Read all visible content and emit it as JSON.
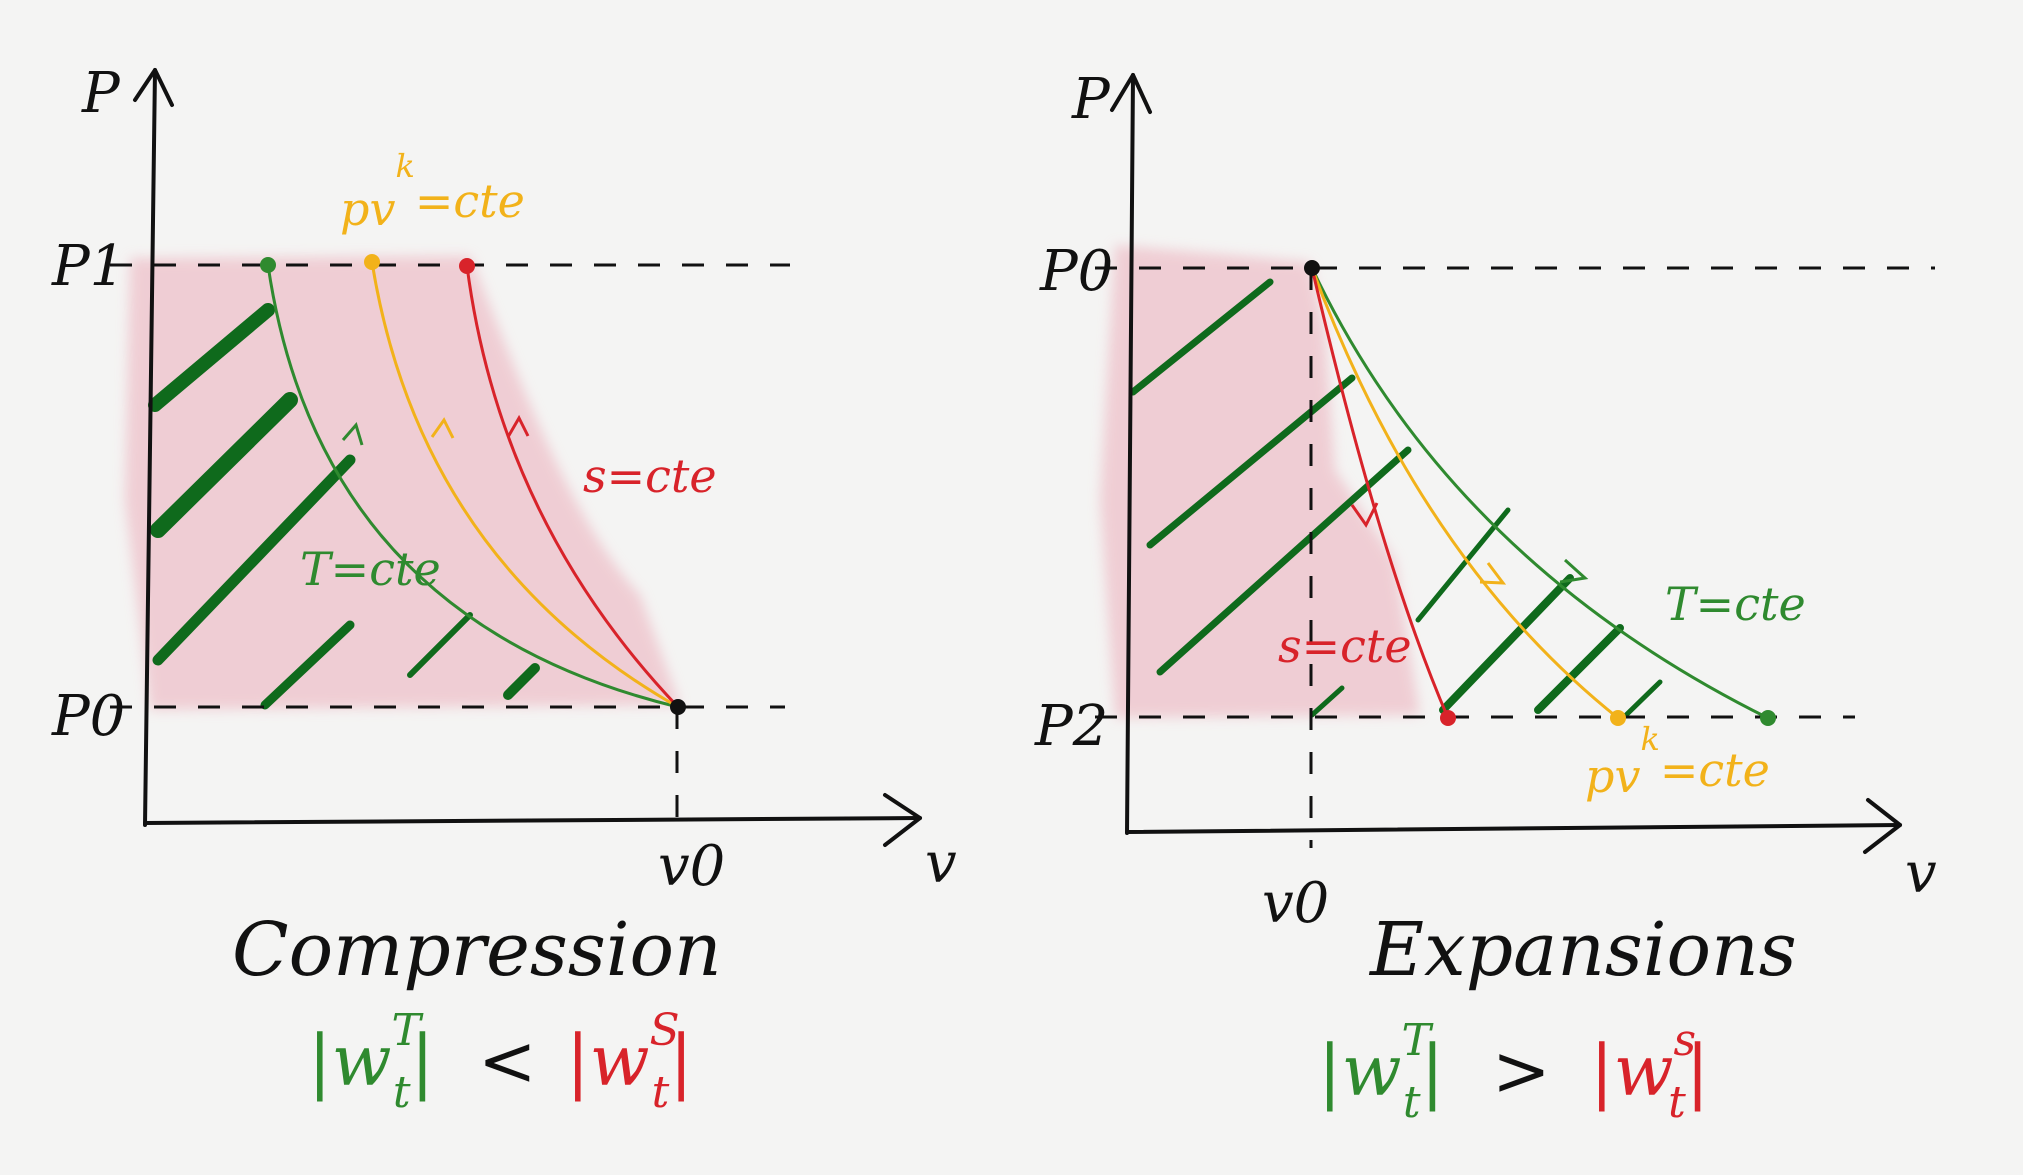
{
  "colors": {
    "green": "#2f8a2f",
    "dark_green": "#0f6a1c",
    "yellow": "#f2b21a",
    "red": "#d8232a",
    "pink": "#efc7cf",
    "ink": "#111111"
  },
  "compression": {
    "axis_p": "P",
    "axis_v": "v",
    "p_top": "P1",
    "p_bottom": "P0",
    "v_point": "v0",
    "label_polytropic": "pv^k=cte",
    "label_polytropic_base": "pv",
    "label_polytropic_exp": "k",
    "label_polytropic_rest": "=cte",
    "label_isentropic": "s=cte",
    "label_isothermal": "T=cte",
    "title": "Compression",
    "formula": {
      "left_symbol": "w",
      "left_sup": "T",
      "left_sub": "t",
      "operator": "<",
      "right_symbol": "w",
      "right_sup": "S",
      "right_sub": "t"
    }
  },
  "expansion": {
    "axis_p": "P",
    "axis_v": "v",
    "p_top": "P0",
    "p_bottom": "P2",
    "v_point": "v0",
    "label_isothermal": "T=cte",
    "label_isentropic": "s=cte",
    "label_polytropic_base": "pv",
    "label_polytropic_exp": "k",
    "label_polytropic_rest": "=cte",
    "title": "Expansions",
    "formula": {
      "left_symbol": "w",
      "left_sup": "T",
      "left_sub": "t",
      "operator": ">",
      "right_symbol": "w",
      "right_sup": "s",
      "right_sub": "t"
    }
  }
}
